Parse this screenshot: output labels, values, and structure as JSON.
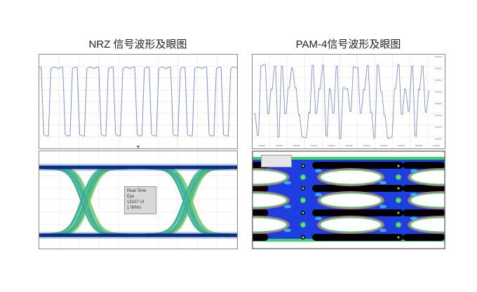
{
  "titles": {
    "nrz": "NRZ 信号波形及眼图",
    "pam4": "PAM-4信号波形及眼图"
  },
  "nrz_eye_info": {
    "line1": "Real-Time Eye",
    "line2": "13107 UI",
    "line3": "1 Wfms"
  },
  "colors": {
    "waveform_trace": "#7f8fd0",
    "nrz_rail": "#0a2a7a",
    "nrz_transition": "#3fbf6f",
    "pam_background": "#1e3fe0",
    "pam_eye_open": "#ffffff",
    "pam_dark_band": "#000000"
  },
  "chart_data": [
    {
      "type": "line",
      "title": "NRZ 信号波形及眼图",
      "panel": "waveform",
      "levels": 2,
      "symbols": [
        1,
        0,
        1,
        1,
        0,
        1,
        0,
        1,
        1,
        0,
        1,
        0,
        1,
        1,
        0,
        1,
        0,
        1,
        1,
        0,
        1,
        0,
        1,
        1,
        0,
        1,
        0,
        1,
        1
      ],
      "grid": true
    },
    {
      "type": "heatmap",
      "title": "NRZ 信号波形及眼图",
      "panel": "eye-diagram",
      "levels": 2,
      "eyes_per_row": 1,
      "grid": true
    },
    {
      "type": "line",
      "title": "PAM-4信号波形及眼图",
      "panel": "waveform",
      "levels": 4,
      "symbols": [
        1,
        0,
        3,
        3,
        1,
        2,
        3,
        0,
        3,
        1,
        2,
        3,
        2,
        1,
        0,
        0,
        1,
        3,
        1,
        2,
        3,
        0,
        2,
        1,
        3,
        0,
        2,
        2,
        1,
        3,
        3,
        1,
        2,
        3,
        1,
        0,
        3,
        2,
        1,
        0,
        0,
        2,
        3,
        1,
        2,
        1,
        3,
        0,
        2,
        3,
        1,
        2
      ],
      "grid": true
    },
    {
      "type": "heatmap",
      "title": "PAM-4信号波形及眼图",
      "panel": "eye-diagram",
      "levels": 4,
      "eyes_per_row": 3,
      "grid": false
    }
  ]
}
